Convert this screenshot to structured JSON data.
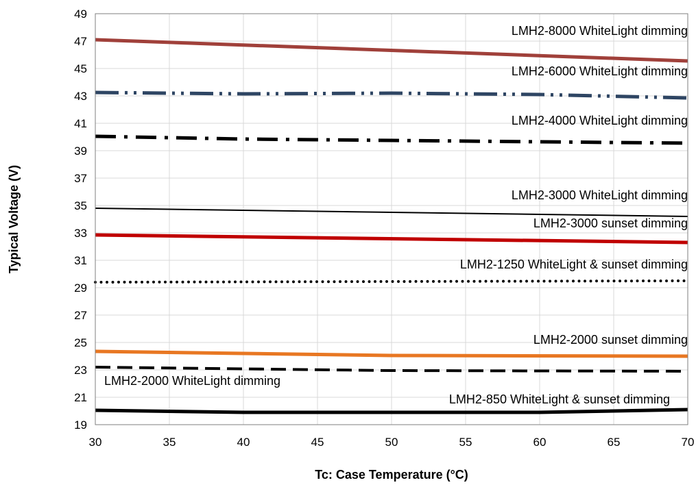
{
  "chart_data": {
    "type": "line",
    "xlabel": "Tc: Case Temperature (°C)",
    "ylabel": "Typical Voltage (V)",
    "xlim": [
      30,
      70
    ],
    "ylim": [
      19,
      49
    ],
    "xticks": [
      30,
      35,
      40,
      45,
      50,
      55,
      60,
      65,
      70
    ],
    "yticks": [
      19,
      21,
      23,
      25,
      27,
      29,
      31,
      33,
      35,
      37,
      39,
      41,
      43,
      45,
      47,
      49
    ],
    "grid": true,
    "legend": "none",
    "series": [
      {
        "name": "LMH2-8000 WhiteLight dimming",
        "color": "#A0403A",
        "style": "solid",
        "x": [
          30,
          70
        ],
        "y": [
          47.1,
          45.55
        ],
        "label_anchor": "end",
        "label_x": 70,
        "label_y": 47.45
      },
      {
        "name": "LMH2-6000 WhiteLight dimming",
        "color": "#2E4563",
        "style": "dash-dot-dot",
        "x": [
          30,
          40,
          50,
          60,
          70
        ],
        "y": [
          43.25,
          43.15,
          43.2,
          43.1,
          42.85
        ],
        "label_anchor": "end",
        "label_x": 70,
        "label_y": 44.5
      },
      {
        "name": "LMH2-4000 WhiteLight dimming",
        "color": "#000000",
        "style": "dash-dot",
        "x": [
          30,
          40,
          50,
          60,
          70
        ],
        "y": [
          40.05,
          39.85,
          39.75,
          39.65,
          39.55
        ],
        "label_anchor": "end",
        "label_x": 70,
        "label_y": 40.9
      },
      {
        "name": "LMH2-3000 WhiteLight dimming",
        "color": "#000000",
        "style": "thin",
        "x": [
          30,
          70
        ],
        "y": [
          34.8,
          34.2
        ],
        "label_anchor": "end",
        "label_x": 70,
        "label_y": 35.45
      },
      {
        "name": "LMH2-3000 sunset dimming",
        "color": "#C00000",
        "style": "solid",
        "x": [
          30,
          70
        ],
        "y": [
          32.85,
          32.3
        ],
        "label_anchor": "end",
        "label_x": 70,
        "label_y": 33.4
      },
      {
        "name": "LMH2-1250 WhiteLight & sunset dimming",
        "color": "#000000",
        "style": "dotted",
        "x": [
          30,
          70
        ],
        "y": [
          29.4,
          29.5
        ],
        "label_anchor": "end",
        "label_x": 70,
        "label_y": 30.4
      },
      {
        "name": "LMH2-2000 sunset dimming",
        "color": "#E87722",
        "style": "solid",
        "x": [
          30,
          50,
          70
        ],
        "y": [
          24.35,
          24.05,
          24.0
        ],
        "label_anchor": "end",
        "label_x": 70,
        "label_y": 24.9
      },
      {
        "name": "LMH2-2000 WhiteLight dimming",
        "color": "#000000",
        "style": "dashed",
        "x": [
          30,
          50,
          70
        ],
        "y": [
          23.2,
          22.95,
          22.9
        ],
        "label_anchor": "start",
        "label_x": 30.6,
        "label_y": 21.9
      },
      {
        "name": "LMH2-850 WhiteLight & sunset dimming",
        "color": "#000000",
        "style": "thick",
        "x": [
          30,
          40,
          60,
          70
        ],
        "y": [
          20.05,
          19.9,
          19.9,
          20.1
        ],
        "label_anchor": "end",
        "label_x": 68.8,
        "label_y": 20.55
      }
    ]
  }
}
